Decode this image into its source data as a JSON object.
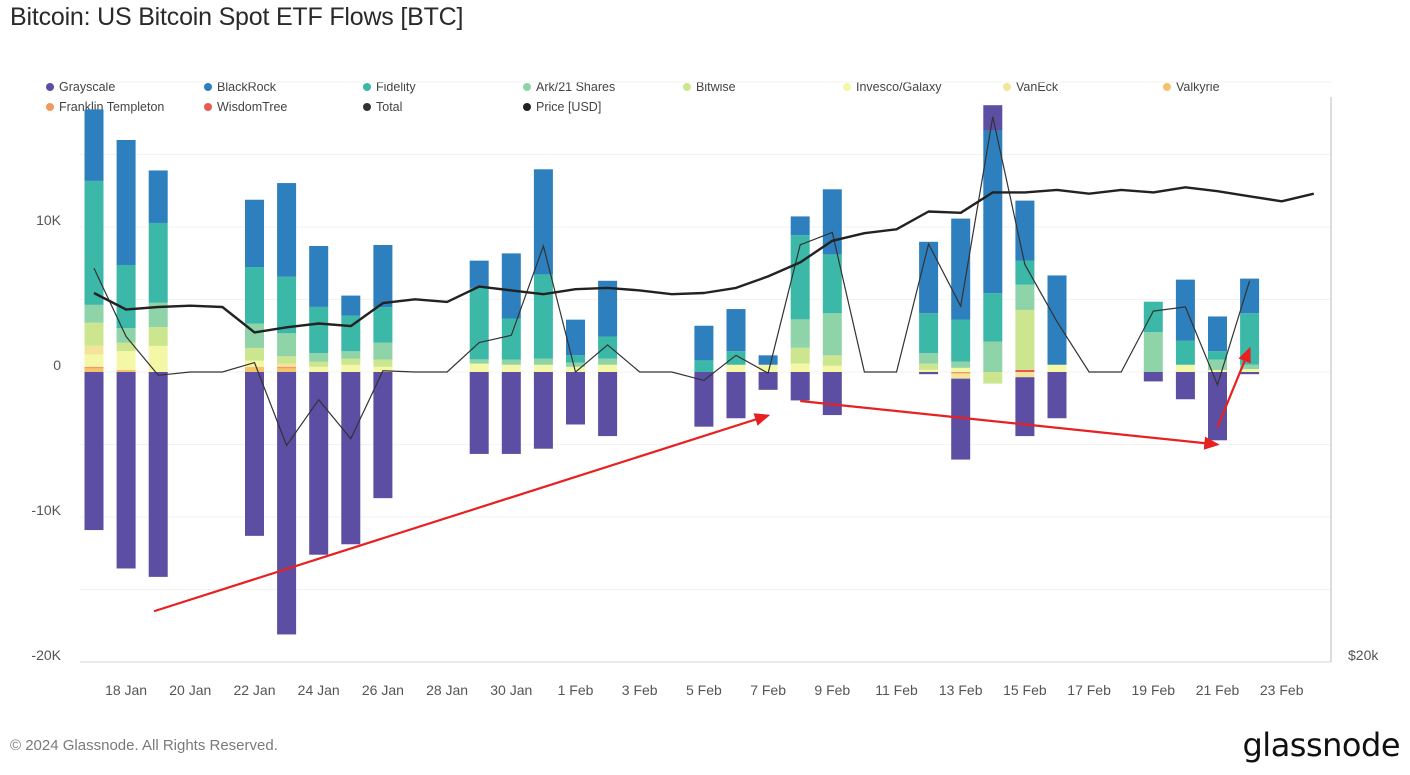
{
  "title": "Bitcoin: US Bitcoin Spot ETF Flows [BTC]",
  "footer": "© 2024 Glassnode. All Rights Reserved.",
  "logo": "glassnode",
  "legend": [
    {
      "name": "Grayscale",
      "color": "#5b4ea3"
    },
    {
      "name": "BlackRock",
      "color": "#2e7fbd"
    },
    {
      "name": "Fidelity",
      "color": "#3cb8a8"
    },
    {
      "name": "Ark/21 Shares",
      "color": "#8fd3a8"
    },
    {
      "name": "Bitwise",
      "color": "#cce68f"
    },
    {
      "name": "Invesco/Galaxy",
      "color": "#f4f7a6"
    },
    {
      "name": "VanEck",
      "color": "#f3e49a"
    },
    {
      "name": "Valkyrie",
      "color": "#f4c36b"
    },
    {
      "name": "Franklin Templeton",
      "color": "#f29a5c"
    },
    {
      "name": "WisdomTree",
      "color": "#e85a50"
    },
    {
      "name": "Total",
      "color": "#333333"
    },
    {
      "name": "Price [USD]",
      "color": "#222222"
    }
  ],
  "chart_data": {
    "type": "bar",
    "stacked": true,
    "title": "Bitcoin: US Bitcoin Spot ETF Flows [BTC]",
    "xlabel": "",
    "ylabel": "",
    "ylim": [
      -20000,
      20000
    ],
    "yticks": [
      {
        "value": 10000,
        "label": "10K"
      },
      {
        "value": 0,
        "label": "0"
      },
      {
        "value": -10000,
        "label": "-10K"
      },
      {
        "value": -20000,
        "label": "-20K"
      }
    ],
    "price_axis": {
      "label": "$20k",
      "range": [
        13700,
        58100
      ]
    },
    "grid": true,
    "legend_position": "top",
    "x_dates": [
      "17 Jan",
      "18 Jan",
      "19 Jan",
      "20 Jan",
      "21 Jan",
      "22 Jan",
      "23 Jan",
      "24 Jan",
      "25 Jan",
      "26 Jan",
      "27 Jan",
      "28 Jan",
      "29 Jan",
      "30 Jan",
      "31 Jan",
      "1 Feb",
      "2 Feb",
      "3 Feb",
      "4 Feb",
      "5 Feb",
      "6 Feb",
      "7 Feb",
      "8 Feb",
      "9 Feb",
      "10 Feb",
      "11 Feb",
      "12 Feb",
      "13 Feb",
      "14 Feb",
      "15 Feb",
      "16 Feb",
      "17 Feb",
      "18 Feb",
      "19 Feb",
      "20 Feb",
      "21 Feb",
      "22 Feb",
      "23 Feb",
      "24 Feb"
    ],
    "xtick_labels": [
      "18 Jan",
      "20 Jan",
      "22 Jan",
      "24 Jan",
      "26 Jan",
      "28 Jan",
      "30 Jan",
      "1 Feb",
      "3 Feb",
      "5 Feb",
      "7 Feb",
      "9 Feb",
      "11 Feb",
      "13 Feb",
      "15 Feb",
      "17 Feb",
      "19 Feb",
      "21 Feb",
      "23 Feb"
    ],
    "series": [
      {
        "name": "Grayscale",
        "values": [
          -10900,
          -13550,
          -14130,
          0,
          0,
          -11300,
          -18100,
          -12600,
          -11880,
          -8700,
          0,
          0,
          -5650,
          -5650,
          -5290,
          -3620,
          -4420,
          0,
          0,
          -3770,
          -3190,
          -1230,
          -1960,
          -2970,
          0,
          0,
          -150,
          -5580,
          1740,
          -4060,
          -3190,
          0,
          0,
          -650,
          -1880,
          -4710,
          -150,
          0,
          0
        ]
      },
      {
        "name": "BlackRock",
        "values": [
          4930,
          8620,
          3620,
          0,
          0,
          4640,
          6450,
          4200,
          1380,
          4280,
          0,
          0,
          1880,
          4490,
          7250,
          2460,
          3840,
          0,
          0,
          2390,
          2900,
          650,
          1300,
          4490,
          0,
          0,
          4930,
          6960,
          11230,
          4130,
          6160,
          0,
          0,
          0,
          4200,
          2390,
          2390,
          0,
          0
        ]
      },
      {
        "name": "Fidelity",
        "values": [
          8550,
          4350,
          5510,
          0,
          0,
          3910,
          3910,
          3190,
          2460,
          2460,
          0,
          0,
          4930,
          2830,
          5800,
          500,
          1520,
          0,
          0,
          800,
          940,
          0,
          5800,
          4060,
          0,
          0,
          2750,
          2900,
          3330,
          1670,
          0,
          0,
          0,
          2100,
          1670,
          580,
          3550,
          0,
          0
        ]
      },
      {
        "name": "Ark/21 Shares",
        "values": [
          1230,
          1010,
          1670,
          0,
          0,
          1670,
          1590,
          580,
          500,
          1160,
          0,
          0,
          290,
          360,
          430,
          290,
          430,
          0,
          0,
          0,
          0,
          0,
          1960,
          2900,
          0,
          0,
          720,
          430,
          2100,
          1740,
          0,
          0,
          0,
          2750,
          0,
          720,
          300,
          0,
          0
        ]
      },
      {
        "name": "Bitwise",
        "values": [
          1590,
          580,
          1300,
          0,
          0,
          870,
          500,
          360,
          430,
          500,
          0,
          0,
          0,
          0,
          0,
          0,
          0,
          0,
          0,
          0,
          0,
          0,
          1090,
          720,
          0,
          0,
          430,
          0,
          -800,
          4130,
          0,
          0,
          0,
          0,
          0,
          0,
          0,
          0,
          0
        ]
      },
      {
        "name": "Invesco/Galaxy",
        "values": [
          850,
          1300,
          1800,
          0,
          0,
          430,
          0,
          360,
          500,
          360,
          0,
          0,
          580,
          500,
          500,
          360,
          500,
          0,
          0,
          0,
          500,
          500,
          580,
          430,
          0,
          0,
          150,
          290,
          0,
          0,
          500,
          0,
          0,
          0,
          500,
          140,
          200,
          0,
          0
        ]
      },
      {
        "name": "VanEck",
        "values": [
          600,
          0,
          0,
          0,
          0,
          0,
          220,
          0,
          0,
          0,
          0,
          0,
          0,
          0,
          0,
          0,
          0,
          0,
          0,
          0,
          0,
          0,
          0,
          0,
          0,
          0,
          0,
          -360,
          0,
          -360,
          0,
          0,
          0,
          0,
          0,
          0,
          0,
          0,
          0
        ]
      },
      {
        "name": "Valkyrie",
        "values": [
          250,
          140,
          0,
          0,
          0,
          360,
          250,
          0,
          0,
          0,
          0,
          0,
          0,
          0,
          0,
          0,
          0,
          0,
          0,
          0,
          0,
          0,
          0,
          0,
          0,
          0,
          0,
          0,
          0,
          0,
          0,
          0,
          0,
          0,
          0,
          0,
          0,
          0,
          0
        ]
      },
      {
        "name": "Franklin Templeton",
        "values": [
          110,
          0,
          0,
          0,
          0,
          0,
          110,
          0,
          0,
          0,
          0,
          0,
          0,
          0,
          0,
          0,
          0,
          0,
          0,
          0,
          0,
          0,
          0,
          0,
          0,
          0,
          0,
          -100,
          0,
          0,
          0,
          0,
          0,
          0,
          0,
          0,
          0,
          0,
          0
        ]
      },
      {
        "name": "WisdomTree",
        "values": [
          0,
          0,
          0,
          0,
          0,
          0,
          0,
          0,
          0,
          0,
          0,
          0,
          0,
          0,
          0,
          0,
          0,
          0,
          0,
          0,
          0,
          0,
          0,
          0,
          0,
          0,
          0,
          0,
          0,
          150,
          0,
          0,
          0,
          0,
          0,
          0,
          0,
          0,
          0
        ]
      }
    ],
    "total": [
      7160,
      2450,
      -230,
      0,
      0,
      650,
      -5070,
      -1910,
      -4610,
      80,
      0,
      0,
      2030,
      2530,
      8690,
      -10,
      1870,
      0,
      0,
      -580,
      1150,
      -80,
      8770,
      9630,
      0,
      0,
      8830,
      4540,
      17600,
      7410,
      3470,
      0,
      0,
      4200,
      4490,
      -880,
      6290,
      null,
      null
    ],
    "price_usd": [
      42700,
      41400,
      41600,
      41700,
      41600,
      39600,
      40000,
      40300,
      40100,
      41900,
      42200,
      42000,
      43200,
      42900,
      42600,
      43000,
      43100,
      42900,
      42600,
      42700,
      43100,
      44000,
      45100,
      46800,
      47400,
      47700,
      49100,
      49000,
      50600,
      50600,
      50800,
      50500,
      50800,
      50600,
      51000,
      50700,
      50300,
      49900,
      50500
    ]
  },
  "annotations": [
    {
      "name": "trend-arrow-1",
      "color": "#e82020",
      "from": [
        "17 Jan",
        -16500
      ],
      "to": [
        "7 Feb",
        -3000
      ]
    },
    {
      "name": "trend-arrow-2",
      "color": "#e82020",
      "from": [
        "8 Feb",
        -2000
      ],
      "to": [
        "21 Feb",
        -5000
      ]
    },
    {
      "name": "trend-arrow-3",
      "color": "#e82020",
      "from": [
        "21 Feb",
        -3800
      ],
      "to": [
        "22 Feb",
        1600
      ]
    }
  ]
}
